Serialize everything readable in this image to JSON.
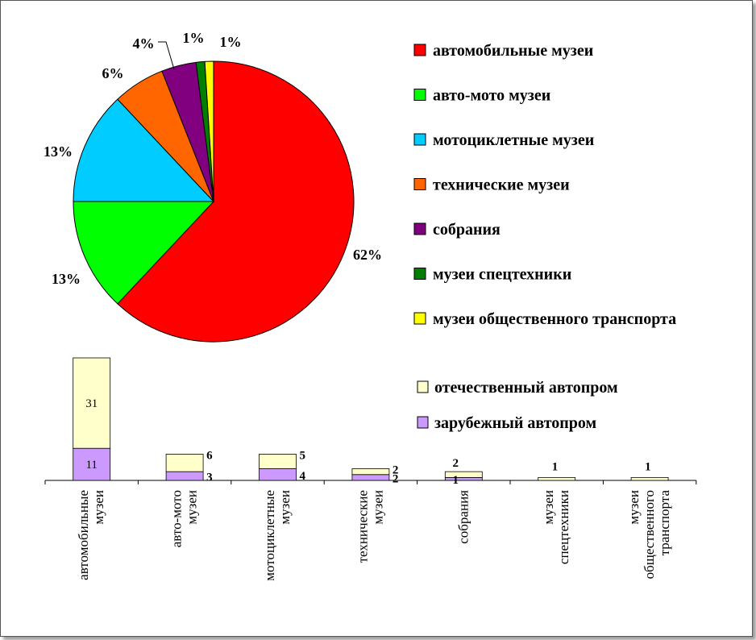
{
  "chart_data": [
    {
      "type": "pie",
      "categories": [
        "автомобильные музеи",
        "авто-мото музеи",
        "мотоциклетные музеи",
        "технические музеи",
        "собрания",
        "музеи спецтехники",
        "музеи общественного транспорта"
      ],
      "values": [
        62,
        13,
        13,
        6,
        4,
        1,
        1
      ],
      "labels": [
        "62%",
        "13%",
        "13%",
        "6%",
        "4%",
        "1%",
        "1%"
      ],
      "colors": [
        "#ff0000",
        "#00ff00",
        "#00ccff",
        "#ff6600",
        "#800080",
        "#008000",
        "#ffff00"
      ],
      "legend_position": "right"
    },
    {
      "type": "bar",
      "stacked": true,
      "categories": [
        [
          "автомобильные",
          "музеи"
        ],
        [
          "авто-мото",
          "музеи"
        ],
        [
          "мотоциклетные",
          "музеи"
        ],
        [
          "технические",
          "музеи"
        ],
        [
          "собрания"
        ],
        [
          "музеи",
          "спецтехники"
        ],
        [
          "музеи",
          "общественного",
          "транспорта"
        ]
      ],
      "series": [
        {
          "name": "зарубежный автопром",
          "values": [
            11,
            3,
            4,
            2,
            1,
            0,
            0
          ],
          "color": "#cc99ff"
        },
        {
          "name": "отечественный автопром",
          "values": [
            31,
            6,
            5,
            2,
            2,
            1,
            1
          ],
          "color": "#ffffcc"
        }
      ],
      "ylim": [
        0,
        45
      ],
      "legend_position": "top-right"
    }
  ]
}
